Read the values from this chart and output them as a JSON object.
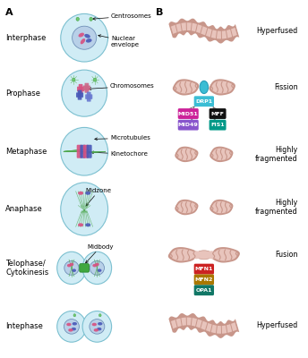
{
  "bg_color": "#ffffff",
  "panel_A_label": "A",
  "panel_B_label": "B",
  "stages_left": [
    "Interphase",
    "Prophase",
    "Metaphase",
    "Anaphase",
    "Telophase/\nCytokinesis",
    "Intephase"
  ],
  "stages_right_labels": [
    "Hyperfused",
    "Fission",
    "Highly\nfragmented",
    "Highly\nfragmented",
    "Fusion",
    "Hyperfused"
  ],
  "mito_outer": "#c8968a",
  "mito_inner": "#e8c4bc",
  "mito_ridge": "#c8968a",
  "cyan_fission": "#3bbdd4",
  "cell_edge": "#7cc0d0",
  "cell_fill": "#d0ecf5",
  "nucleus_fill": "#b8d0e8",
  "nucleus_edge": "#7090b8",
  "chrom_pink": "#d85080",
  "chrom_blue": "#4858b8",
  "chrom_ltblue": "#6878d0",
  "spindle": "#50a850",
  "centriole": "#70c870",
  "protein_DRP1": "#3bbdd4",
  "protein_MID51": "#cc2299",
  "protein_MFF": "#111111",
  "protein_MID49": "#8855cc",
  "protein_FIS1": "#009988",
  "protein_MFN1": "#cc2222",
  "protein_MFN2": "#aa7700",
  "protein_OPA1": "#117766",
  "ann_fs": 5.0,
  "lbl_fs": 6.0,
  "prot_fs": 4.5,
  "panel_fs": 8
}
